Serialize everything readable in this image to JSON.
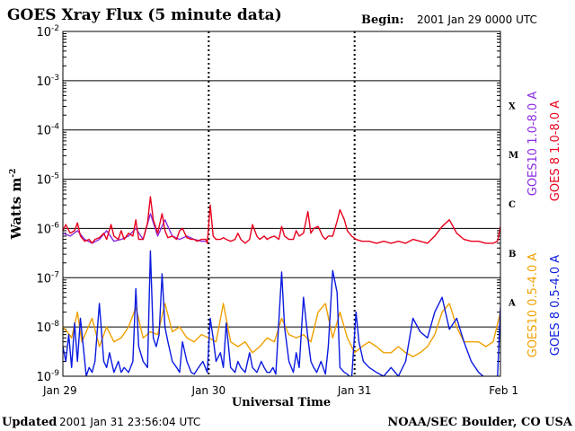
{
  "header": {
    "title": "GOES Xray Flux (5 minute data)",
    "begin_label": "Begin:",
    "begin_value": "2001 Jan 29 0000 UTC"
  },
  "footer": {
    "updated_label": "Updated",
    "updated_value": "2001 Jan 31 23:56:04 UTC",
    "credit": "NOAA/SEC Boulder, CO USA"
  },
  "chart_data": {
    "type": "line",
    "title": "GOES Xray Flux (5 minute data)",
    "xlabel": "Universal Time",
    "ylabel": "Watts m",
    "ylabel_exponent": "-2",
    "x_unit": "days since 2001 Jan 29 0000 UTC",
    "xlim": [
      0,
      3
    ],
    "x_ticks": [
      {
        "label": "Jan 29",
        "x": 0
      },
      {
        "label": "Jan 30",
        "x": 1
      },
      {
        "label": "Jan 31",
        "x": 2
      },
      {
        "label": "Feb 1",
        "x": 3
      }
    ],
    "y_scale": "log",
    "ylim": [
      1e-09,
      0.01
    ],
    "y_ticks": [
      {
        "base": "10",
        "exp": "-9",
        "value": 1e-09
      },
      {
        "base": "10",
        "exp": "-8",
        "value": 1e-08
      },
      {
        "base": "10",
        "exp": "-7",
        "value": 1e-07
      },
      {
        "base": "10",
        "exp": "-6",
        "value": 1e-06
      },
      {
        "base": "10",
        "exp": "-5",
        "value": 1e-05
      },
      {
        "base": "10",
        "exp": "-4",
        "value": 0.0001
      },
      {
        "base": "10",
        "exp": "-3",
        "value": 0.001
      },
      {
        "base": "10",
        "exp": "-2",
        "value": 0.01
      }
    ],
    "flare_classes": [
      {
        "label": "A",
        "value": 3.16e-08
      },
      {
        "label": "B",
        "value": 3.16e-07
      },
      {
        "label": "C",
        "value": 3.16e-06
      },
      {
        "label": "M",
        "value": 3.16e-05
      },
      {
        "label": "X",
        "value": 0.000316
      }
    ],
    "grid": true,
    "legend_placement": "right, rotated vertical",
    "series": [
      {
        "name": "GOES10 1.0-8.0 A",
        "color": "#8a2be2",
        "x": [
          0,
          0.05,
          0.1,
          0.15,
          0.2,
          0.25,
          0.3,
          0.35,
          0.4,
          0.45,
          0.5,
          0.55,
          0.6,
          0.65,
          0.7,
          0.75,
          0.8,
          0.85,
          0.9,
          0.95,
          0.99
        ],
        "y": [
          8e-07,
          7e-07,
          9e-07,
          6e-07,
          5e-07,
          6e-07,
          9e-07,
          5.5e-07,
          6e-07,
          7e-07,
          1e-06,
          6e-07,
          2e-06,
          7e-07,
          1.5e-06,
          7e-07,
          6e-07,
          7e-07,
          6e-07,
          5.5e-07,
          5.5e-07
        ]
      },
      {
        "name": "GOES 8 1.0-8.0 A",
        "color": "#e8001c",
        "x": [
          0,
          0.02,
          0.05,
          0.08,
          0.1,
          0.12,
          0.15,
          0.18,
          0.2,
          0.22,
          0.25,
          0.28,
          0.3,
          0.33,
          0.35,
          0.38,
          0.4,
          0.42,
          0.45,
          0.48,
          0.5,
          0.52,
          0.55,
          0.58,
          0.6,
          0.62,
          0.65,
          0.68,
          0.7,
          0.72,
          0.75,
          0.78,
          0.8,
          0.82,
          0.85,
          0.88,
          0.9,
          0.92,
          0.95,
          0.98,
          0.99,
          1.01,
          1.02,
          1.03,
          1.05,
          1.08,
          1.1,
          1.12,
          1.15,
          1.18,
          1.2,
          1.22,
          1.25,
          1.28,
          1.3,
          1.33,
          1.35,
          1.38,
          1.4,
          1.42,
          1.45,
          1.48,
          1.5,
          1.52,
          1.55,
          1.58,
          1.6,
          1.62,
          1.65,
          1.68,
          1.7,
          1.72,
          1.75,
          1.78,
          1.8,
          1.82,
          1.85,
          1.88,
          1.9,
          1.93,
          1.95,
          1.98,
          2.01,
          2.05,
          2.1,
          2.15,
          2.2,
          2.25,
          2.3,
          2.35,
          2.4,
          2.45,
          2.5,
          2.55,
          2.6,
          2.65,
          2.7,
          2.75,
          2.8,
          2.85,
          2.9,
          2.95,
          2.98,
          3.0
        ],
        "y": [
          9e-07,
          1.2e-06,
          8e-07,
          9e-07,
          1.3e-06,
          7e-07,
          5.5e-07,
          6e-07,
          5e-07,
          6e-07,
          6.5e-07,
          8e-07,
          6e-07,
          1.2e-06,
          7e-07,
          6e-07,
          9e-07,
          6e-07,
          8e-07,
          7e-07,
          1.5e-06,
          6e-07,
          6e-07,
          1.3e-06,
          4.4e-06,
          1.5e-06,
          8e-07,
          2e-06,
          9e-07,
          6.5e-07,
          7e-07,
          6e-07,
          9e-07,
          1e-06,
          6.5e-07,
          6e-07,
          6e-07,
          5.5e-07,
          6e-07,
          6e-07,
          5e-07,
          3e-06,
          1.5e-06,
          7e-07,
          6e-07,
          6e-07,
          6.5e-07,
          6e-07,
          5.5e-07,
          6e-07,
          8e-07,
          6e-07,
          5e-07,
          6e-07,
          1.2e-06,
          7e-07,
          6e-07,
          7e-07,
          6e-07,
          6.5e-07,
          7e-07,
          6e-07,
          1.1e-06,
          7e-07,
          6e-07,
          6e-07,
          9e-07,
          7e-07,
          8e-07,
          2.2e-06,
          8e-07,
          1e-06,
          1.1e-06,
          7e-07,
          6e-07,
          7e-07,
          7e-07,
          1.4e-06,
          2.4e-06,
          1.5e-06,
          9e-07,
          7e-07,
          6e-07,
          5.5e-07,
          5.5e-07,
          5e-07,
          5.5e-07,
          5e-07,
          5.5e-07,
          5e-07,
          6e-07,
          5.5e-07,
          5e-07,
          7e-07,
          1.1e-06,
          1.5e-06,
          8e-07,
          6e-07,
          5.5e-07,
          5.5e-07,
          5e-07,
          5e-07,
          5.5e-07,
          1.1e-06
        ]
      },
      {
        "name": "GOES10 0.5-4.0 A",
        "color": "#f0a000",
        "x": [
          0,
          0.03,
          0.06,
          0.1,
          0.13,
          0.16,
          0.2,
          0.25,
          0.3,
          0.35,
          0.4,
          0.45,
          0.5,
          0.55,
          0.6,
          0.65,
          0.7,
          0.75,
          0.8,
          0.85,
          0.9,
          0.95,
          1.0,
          1.05,
          1.1,
          1.15,
          1.2,
          1.25,
          1.3,
          1.35,
          1.4,
          1.45,
          1.5,
          1.55,
          1.6,
          1.65,
          1.7,
          1.75,
          1.8,
          1.85,
          1.9,
          1.95,
          2.0,
          2.05,
          2.1,
          2.15,
          2.2,
          2.25,
          2.3,
          2.35,
          2.4,
          2.45,
          2.5,
          2.55,
          2.6,
          2.65,
          2.7,
          2.75,
          2.8,
          2.85,
          2.9,
          2.95,
          3.0
        ],
        "y": [
          1e-08,
          8e-09,
          6e-09,
          2e-08,
          5e-09,
          8e-09,
          1.5e-08,
          4e-09,
          1e-08,
          5e-09,
          6e-09,
          1e-08,
          2.5e-08,
          6e-09,
          8e-09,
          7e-09,
          3e-08,
          8e-09,
          1e-08,
          6e-09,
          5e-09,
          7e-09,
          6e-09,
          5e-09,
          3e-08,
          5e-09,
          4e-09,
          5e-09,
          3e-09,
          4e-09,
          6e-09,
          5e-09,
          1.5e-08,
          7e-09,
          6e-09,
          7e-09,
          5e-09,
          2e-08,
          3e-08,
          6e-09,
          2e-08,
          6e-09,
          3e-09,
          4e-09,
          5e-09,
          4e-09,
          3e-09,
          3e-09,
          4e-09,
          3e-09,
          2.5e-09,
          3e-09,
          4e-09,
          7e-09,
          2e-08,
          3e-08,
          1e-08,
          5e-09,
          5e-09,
          5e-09,
          4e-09,
          5e-09,
          2e-08
        ]
      },
      {
        "name": "GOES 8 0.5-4.0 A",
        "color": "#0a1adf",
        "x": [
          0,
          0.02,
          0.04,
          0.06,
          0.08,
          0.1,
          0.12,
          0.14,
          0.16,
          0.18,
          0.2,
          0.22,
          0.25,
          0.28,
          0.3,
          0.32,
          0.35,
          0.38,
          0.4,
          0.42,
          0.45,
          0.48,
          0.5,
          0.52,
          0.55,
          0.58,
          0.6,
          0.62,
          0.64,
          0.66,
          0.68,
          0.7,
          0.72,
          0.75,
          0.78,
          0.8,
          0.82,
          0.85,
          0.88,
          0.9,
          0.93,
          0.96,
          0.99,
          1.01,
          1.03,
          1.05,
          1.08,
          1.1,
          1.12,
          1.15,
          1.18,
          1.2,
          1.22,
          1.25,
          1.28,
          1.3,
          1.33,
          1.36,
          1.38,
          1.4,
          1.42,
          1.44,
          1.46,
          1.5,
          1.52,
          1.55,
          1.58,
          1.6,
          1.62,
          1.65,
          1.68,
          1.7,
          1.72,
          1.74,
          1.77,
          1.8,
          1.82,
          1.85,
          1.88,
          1.9,
          1.93,
          1.95,
          1.98,
          2.01,
          2.03,
          2.06,
          2.1,
          2.15,
          2.2,
          2.25,
          2.3,
          2.35,
          2.4,
          2.45,
          2.5,
          2.55,
          2.6,
          2.65,
          2.7,
          2.75,
          2.8,
          2.85,
          2.9,
          2.95,
          2.98,
          3.0
        ],
        "y": [
          4e-09,
          2e-09,
          7e-09,
          1.5e-09,
          1.2e-08,
          2e-09,
          1.5e-08,
          4e-09,
          1e-09,
          1.5e-09,
          1.2e-09,
          2e-09,
          3e-08,
          2e-09,
          1.5e-09,
          3e-09,
          1.2e-09,
          2e-09,
          1.2e-09,
          1.5e-09,
          1.2e-09,
          2e-09,
          6e-08,
          4e-09,
          2e-09,
          1.5e-09,
          3.5e-07,
          6e-09,
          4e-09,
          7e-09,
          1.2e-07,
          1e-08,
          5e-09,
          2e-09,
          1.5e-09,
          1.2e-09,
          5e-09,
          2e-09,
          1.2e-09,
          1.1e-09,
          1.5e-09,
          2e-09,
          1.2e-09,
          1.5e-08,
          6e-09,
          2e-09,
          3e-09,
          1.5e-09,
          1.2e-08,
          1.5e-09,
          1.2e-09,
          2e-09,
          1.5e-09,
          1.2e-09,
          3e-09,
          1.5e-09,
          1.2e-09,
          2e-09,
          1.5e-09,
          1.2e-09,
          1.2e-09,
          1.5e-09,
          1.1e-09,
          1.3e-07,
          1e-08,
          2e-09,
          1.2e-09,
          3e-09,
          1.5e-09,
          4e-08,
          6e-09,
          2e-09,
          1.5e-09,
          1.2e-09,
          2e-09,
          1.1e-09,
          4e-09,
          1.4e-07,
          5e-08,
          1.5e-09,
          1.2e-09,
          1.1e-09,
          9e-10,
          2e-08,
          5e-09,
          2e-09,
          1.5e-09,
          1.2e-09,
          1e-09,
          1.5e-09,
          1e-09,
          2e-09,
          1.5e-08,
          8e-09,
          6e-09,
          2e-08,
          4e-08,
          9e-09,
          1.5e-08,
          5e-09,
          2e-09,
          1.2e-09,
          9e-10,
          9e-10,
          1e-09,
          2.5e-08
        ]
      }
    ]
  }
}
